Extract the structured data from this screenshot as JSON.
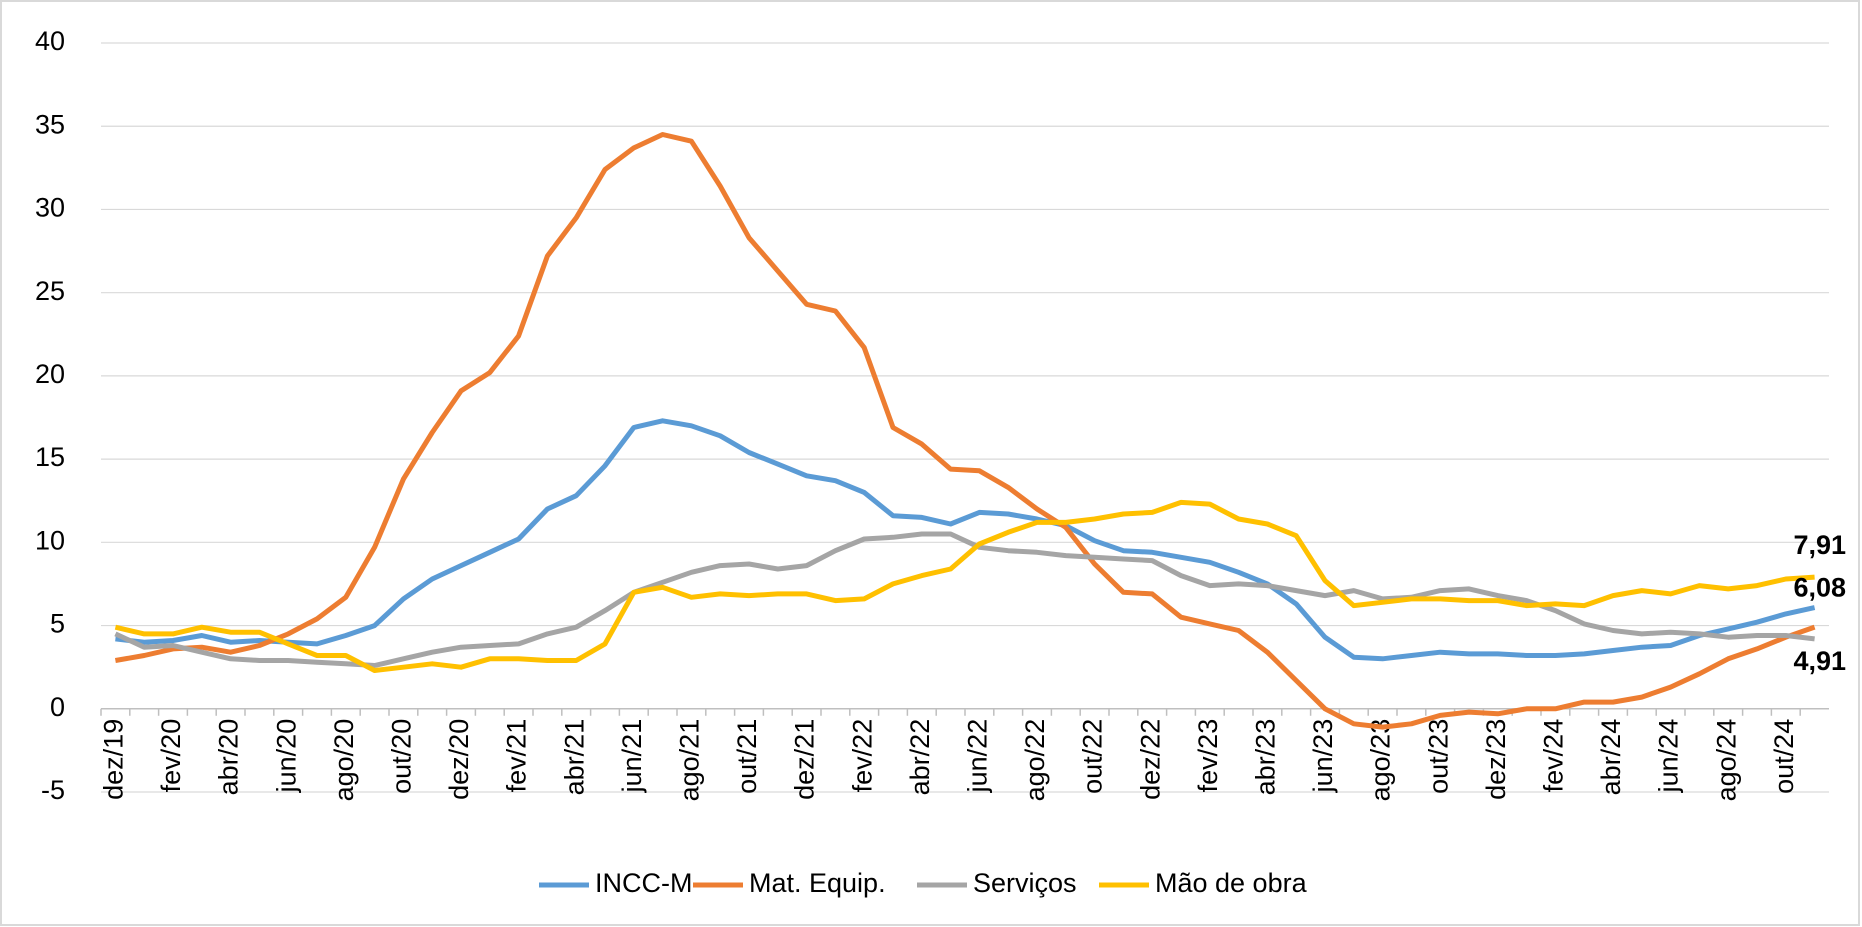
{
  "chart_data": {
    "type": "line",
    "categories": [
      "dez/19",
      null,
      "fev/20",
      null,
      "abr/20",
      null,
      "jun/20",
      null,
      "ago/20",
      null,
      "out/20",
      null,
      "dez/20",
      null,
      "fev/21",
      null,
      "abr/21",
      null,
      "jun/21",
      null,
      "ago/21",
      null,
      "out/21",
      null,
      "dez/21",
      null,
      "fev/22",
      null,
      "abr/22",
      null,
      "jun/22",
      null,
      "ago/22",
      null,
      "out/22",
      null,
      "dez/22",
      null,
      "fev/23",
      null,
      "abr/23",
      null,
      "jun/23",
      null,
      "ago/23",
      null,
      "out/23",
      null,
      "dez/23",
      null,
      "fev/24",
      null,
      "abr/24",
      null,
      "jun/24",
      null,
      "ago/24",
      null,
      "out/24",
      null
    ],
    "series": [
      {
        "name": "INCC-M",
        "color": "#5b9bd5",
        "values": [
          4.2,
          4.0,
          4.1,
          4.4,
          4.0,
          4.1,
          4.0,
          3.9,
          4.4,
          5.0,
          6.6,
          7.8,
          8.6,
          9.4,
          10.2,
          12.0,
          12.8,
          14.6,
          16.9,
          17.3,
          17.0,
          16.4,
          15.4,
          14.7,
          14.0,
          13.7,
          13.0,
          11.6,
          11.5,
          11.1,
          11.8,
          11.7,
          11.4,
          11.0,
          10.1,
          9.5,
          9.4,
          9.1,
          8.8,
          8.2,
          7.5,
          6.3,
          4.3,
          3.1,
          3.0,
          3.2,
          3.4,
          3.3,
          3.3,
          3.2,
          3.2,
          3.3,
          3.5,
          3.7,
          3.8,
          4.4,
          4.8,
          5.2,
          5.7,
          6.08
        ],
        "value_labels": [
          null,
          null,
          null,
          null,
          null,
          null,
          null,
          null,
          null,
          null,
          null,
          null,
          null,
          null,
          null,
          null,
          null,
          null,
          null,
          null,
          null,
          null,
          null,
          null,
          null,
          null,
          null,
          null,
          null,
          null,
          null,
          null,
          null,
          null,
          null,
          null,
          null,
          null,
          null,
          null,
          null,
          null,
          null,
          null,
          null,
          null,
          null,
          null,
          null,
          null,
          null,
          null,
          null,
          null,
          null,
          null,
          null,
          null,
          null,
          "6,08"
        ]
      },
      {
        "name": "Mat. Equip.",
        "color": "#ed7d31",
        "values": [
          2.9,
          3.2,
          3.6,
          3.7,
          3.4,
          3.8,
          4.5,
          5.4,
          6.7,
          9.7,
          13.8,
          16.6,
          19.1,
          20.2,
          22.4,
          27.2,
          29.5,
          32.4,
          33.7,
          34.5,
          34.1,
          31.4,
          28.3,
          26.3,
          24.3,
          23.9,
          21.7,
          16.9,
          15.9,
          14.4,
          14.3,
          13.3,
          12.0,
          10.9,
          8.7,
          7.0,
          6.9,
          5.5,
          5.1,
          4.7,
          3.4,
          1.7,
          0.0,
          -0.9,
          -1.1,
          -0.9,
          -0.4,
          -0.2,
          -0.3,
          0.0,
          0.0,
          0.4,
          0.4,
          0.7,
          1.3,
          2.1,
          3.0,
          3.6,
          4.3,
          4.91
        ],
        "value_labels": [
          null,
          null,
          null,
          null,
          null,
          null,
          null,
          null,
          null,
          null,
          null,
          null,
          null,
          null,
          null,
          null,
          null,
          null,
          null,
          null,
          null,
          null,
          null,
          null,
          null,
          null,
          null,
          null,
          null,
          null,
          null,
          null,
          null,
          null,
          null,
          null,
          null,
          null,
          null,
          null,
          null,
          null,
          null,
          null,
          null,
          null,
          null,
          null,
          null,
          null,
          null,
          null,
          null,
          null,
          null,
          null,
          null,
          null,
          null,
          "4,91"
        ]
      },
      {
        "name": "Serviços",
        "color": "#a5a5a5",
        "values": [
          4.5,
          3.7,
          3.8,
          3.4,
          3.0,
          2.9,
          2.9,
          2.8,
          2.7,
          2.6,
          3.0,
          3.4,
          3.7,
          3.8,
          3.9,
          4.5,
          4.9,
          5.9,
          7.0,
          7.6,
          8.2,
          8.6,
          8.7,
          8.4,
          8.6,
          9.5,
          10.2,
          10.3,
          10.5,
          10.5,
          9.7,
          9.5,
          9.4,
          9.2,
          9.1,
          9.0,
          8.9,
          8.0,
          7.4,
          7.5,
          7.4,
          7.1,
          6.8,
          7.1,
          6.6,
          6.7,
          7.1,
          7.2,
          6.8,
          6.5,
          5.9,
          5.1,
          4.7,
          4.5,
          4.6,
          4.5,
          4.3,
          4.4,
          4.4,
          4.2
        ]
      },
      {
        "name": "Mão de obra",
        "color": "#ffc000",
        "values": [
          4.9,
          4.5,
          4.5,
          4.9,
          4.6,
          4.6,
          3.9,
          3.2,
          3.2,
          2.3,
          2.5,
          2.7,
          2.5,
          3.0,
          3.0,
          2.9,
          2.9,
          3.9,
          7.0,
          7.3,
          6.7,
          6.9,
          6.8,
          6.9,
          6.9,
          6.5,
          6.6,
          7.5,
          8.0,
          8.4,
          9.9,
          10.6,
          11.2,
          11.2,
          11.4,
          11.7,
          11.8,
          12.4,
          12.3,
          11.4,
          11.1,
          10.4,
          7.7,
          6.2,
          6.4,
          6.6,
          6.6,
          6.5,
          6.5,
          6.2,
          6.3,
          6.2,
          6.8,
          7.1,
          6.9,
          7.4,
          7.2,
          7.4,
          7.8,
          7.91
        ],
        "value_labels": [
          null,
          null,
          null,
          null,
          null,
          null,
          null,
          null,
          null,
          null,
          null,
          null,
          null,
          null,
          null,
          null,
          null,
          null,
          null,
          null,
          null,
          null,
          null,
          null,
          null,
          null,
          null,
          null,
          null,
          null,
          null,
          null,
          null,
          null,
          null,
          null,
          null,
          null,
          null,
          null,
          null,
          null,
          null,
          null,
          null,
          null,
          null,
          null,
          null,
          null,
          null,
          null,
          null,
          null,
          null,
          null,
          null,
          null,
          null,
          "7,91"
        ]
      }
    ],
    "ylim": [
      -5,
      40
    ],
    "yticks": [
      -5,
      0,
      5,
      10,
      15,
      20,
      25,
      30,
      35,
      40
    ],
    "grid": true,
    "legend": "bottom"
  }
}
